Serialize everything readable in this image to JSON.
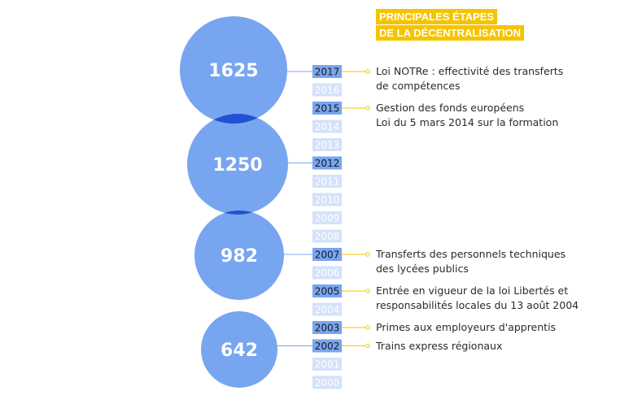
{
  "title": {
    "line1": "PRINCIPALES ÉTAPES",
    "line2": "DE LA DÉCENTRALISATION"
  },
  "colors": {
    "circle": "#78a5f0",
    "overlap": "#1f52d2",
    "highlight_year": "#78a5f0",
    "faded_year": "#d4e2fa",
    "title_bg": "#f5c400",
    "connector": "#f5c400"
  },
  "bubbles": [
    {
      "value": "1625",
      "year": "2017"
    },
    {
      "value": "1250",
      "year": "2012"
    },
    {
      "value": "982",
      "year": "2007"
    },
    {
      "value": "642",
      "year": "2002"
    }
  ],
  "years": [
    {
      "label": "2017",
      "highlight": true
    },
    {
      "label": "2016",
      "highlight": false
    },
    {
      "label": "2015",
      "highlight": true
    },
    {
      "label": "2014",
      "highlight": false
    },
    {
      "label": "2013",
      "highlight": false
    },
    {
      "label": "2012",
      "highlight": true
    },
    {
      "label": "2011",
      "highlight": false
    },
    {
      "label": "2010",
      "highlight": false
    },
    {
      "label": "2009",
      "highlight": false
    },
    {
      "label": "2008",
      "highlight": false
    },
    {
      "label": "2007",
      "highlight": true
    },
    {
      "label": "2006",
      "highlight": false
    },
    {
      "label": "2005",
      "highlight": true
    },
    {
      "label": "2004",
      "highlight": false
    },
    {
      "label": "2003",
      "highlight": true
    },
    {
      "label": "2002",
      "highlight": true
    },
    {
      "label": "2001",
      "highlight": false
    },
    {
      "label": "2000",
      "highlight": false
    }
  ],
  "events": [
    {
      "year": "2017",
      "lines": [
        "Loi NOTRe : effectivité des transferts",
        "de compétences"
      ]
    },
    {
      "year": "2015",
      "lines": [
        "Gestion des fonds européens",
        "Loi du 5 mars 2014 sur la formation"
      ]
    },
    {
      "year": "2007",
      "lines": [
        "Transferts des personnels techniques",
        "des lycées publics"
      ]
    },
    {
      "year": "2005",
      "lines": [
        "Entrée en vigueur de la loi Libertés et",
        "responsabilités locales du 13 août 2004"
      ]
    },
    {
      "year": "2003",
      "lines": [
        "Primes aux employeurs d'apprentis"
      ]
    },
    {
      "year": "2002",
      "lines": [
        "Trains express régionaux"
      ]
    }
  ]
}
